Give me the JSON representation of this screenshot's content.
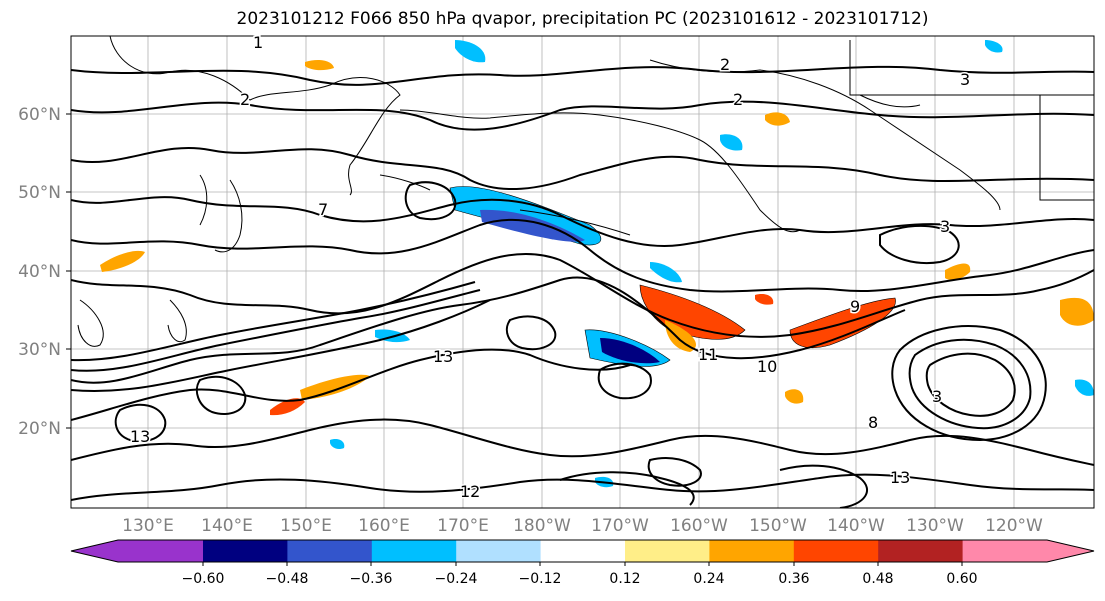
{
  "title": "2023101212 F066 850 hPa qvapor, precipitation PC (2023101612 - 2023101712)",
  "lat_labels": [
    "60°N",
    "50°N",
    "40°N",
    "30°N",
    "20°N"
  ],
  "lon_labels": [
    "130°E",
    "140°E",
    "150°E",
    "160°E",
    "170°E",
    "180°W",
    "170°W",
    "160°W",
    "150°W",
    "140°W",
    "130°W",
    "120°W"
  ],
  "colorbar": {
    "colors": [
      "#9933cc",
      "#000080",
      "#3355cc",
      "#00bfff",
      "#b0e0ff",
      "#ffffff",
      "#ffee88",
      "#ffa500",
      "#ff4500",
      "#b22222",
      "#ff88aa"
    ],
    "tick_labels": [
      "−0.60",
      "−0.48",
      "−0.36",
      "−0.24",
      "−0.12",
      "0.12",
      "0.24",
      "0.36",
      "0.48",
      "0.60"
    ]
  },
  "contour_labels": [
    "1",
    "2",
    "2",
    "2",
    "3",
    "3",
    "3",
    "7",
    "8",
    "9",
    "10",
    "11",
    "12",
    "13",
    "13",
    "13"
  ],
  "colors": {
    "axis_text": "#808080",
    "grid": "#b0b0b0",
    "land": "#000000",
    "contour": "#000000"
  }
}
